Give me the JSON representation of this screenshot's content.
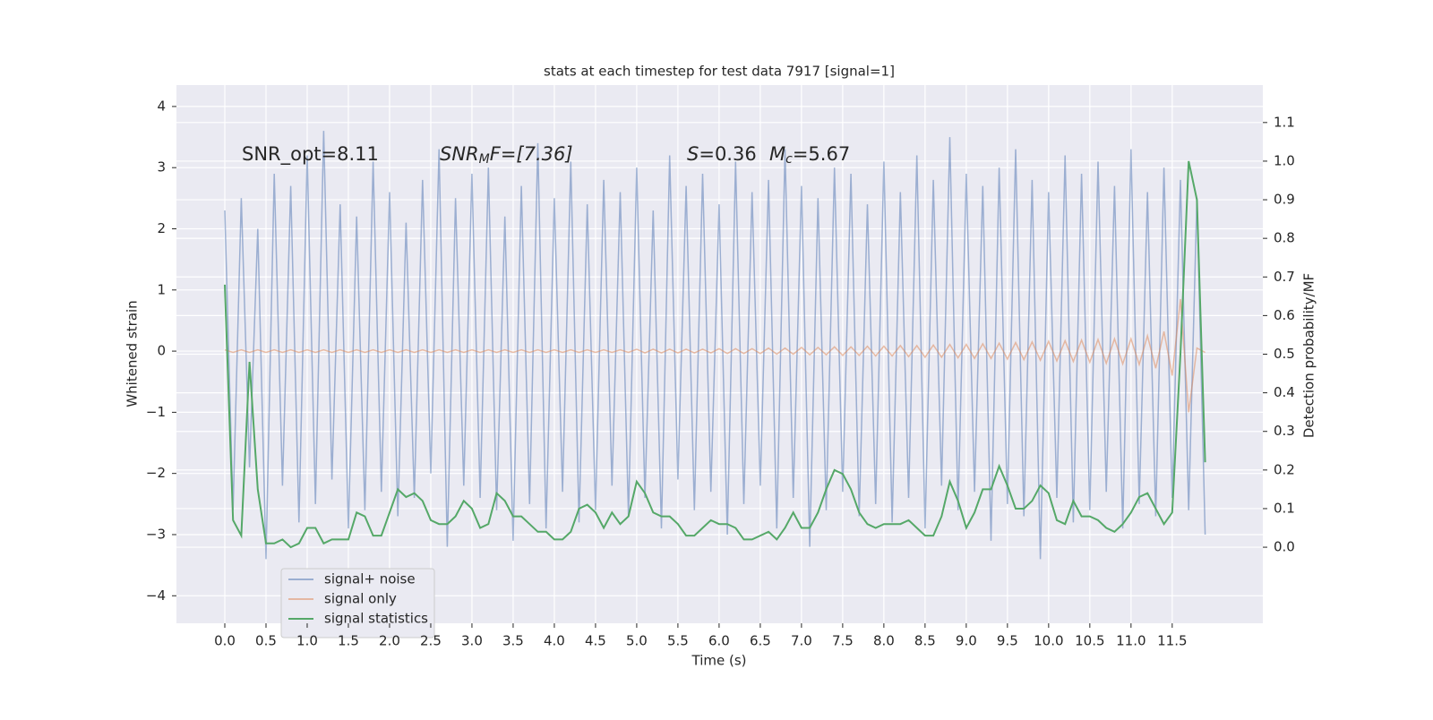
{
  "chart_data": {
    "type": "line",
    "title": "stats at each timestep for test data 7917 [signal=1]",
    "xlabel": "Time (s)",
    "ylabel": "Whitened strain",
    "y2label": "Detection probability/MF",
    "annotations": [
      [
        "SNR_opt=8.11"
      ],
      [
        "SNR",
        "M",
        "F=[7.36]"
      ],
      [
        "S",
        "=0.36"
      ],
      [
        "M",
        "c",
        "=5.67"
      ]
    ],
    "grid": true,
    "legend": "lower left",
    "xlim": [
      -0.587,
      12.6
    ],
    "ylim": [
      -4.45,
      4.35
    ],
    "y2lim": [
      -0.197,
      1.197
    ],
    "xticks": [
      {
        "value": 0,
        "label": "0.0"
      },
      0.5,
      {
        "value": 1,
        "label": "1.0"
      },
      1.5,
      {
        "value": 2,
        "label": "2.0"
      },
      2.5,
      {
        "value": 3,
        "label": "3.0"
      },
      3.5,
      {
        "value": 4,
        "label": "4.0"
      },
      4.5,
      {
        "value": 5,
        "label": "5.0"
      },
      5.5,
      {
        "value": 6,
        "label": "6.0"
      },
      6.5,
      {
        "value": 7,
        "label": "7.0"
      },
      7.5,
      {
        "value": 8,
        "label": "8.0"
      },
      8.5,
      {
        "value": 9,
        "label": "9.0"
      },
      9.5,
      {
        "value": 10,
        "label": "10.0"
      },
      10.5,
      {
        "value": 11,
        "label": "11.0"
      },
      11.5
    ],
    "yticks": [
      {
        "value": -4,
        "label": "−4"
      },
      {
        "value": -3,
        "label": "−3"
      },
      {
        "value": -2,
        "label": "−2"
      },
      {
        "value": -1,
        "label": "−1"
      },
      0,
      1,
      2,
      3,
      4
    ],
    "y2ticks": [
      {
        "value": 0,
        "label": "0.0"
      },
      0.1,
      0.2,
      0.3,
      0.4,
      0.5,
      0.6,
      0.7,
      0.8,
      0.9,
      {
        "value": 1,
        "label": "1.0"
      },
      1.1
    ],
    "x": [
      0.0,
      0.1,
      0.2,
      0.3,
      0.4,
      0.5,
      0.6,
      0.7,
      0.8,
      0.9,
      1.0,
      1.1,
      1.2,
      1.3,
      1.4,
      1.5,
      1.6,
      1.7,
      1.8,
      1.9,
      2.0,
      2.1,
      2.2,
      2.3,
      2.4,
      2.5,
      2.6,
      2.7,
      2.8,
      2.9,
      3.0,
      3.1,
      3.2,
      3.3,
      3.4,
      3.5,
      3.6,
      3.7,
      3.8,
      3.9,
      4.0,
      4.1,
      4.2,
      4.3,
      4.4,
      4.5,
      4.6,
      4.7,
      4.8,
      4.9,
      5.0,
      5.1,
      5.2,
      5.3,
      5.4,
      5.5,
      5.6,
      5.7,
      5.8,
      5.9,
      6.0,
      6.1,
      6.2,
      6.3,
      6.4,
      6.5,
      6.6,
      6.7,
      6.8,
      6.9,
      7.0,
      7.1,
      7.2,
      7.3,
      7.4,
      7.5,
      7.6,
      7.7,
      7.8,
      7.9,
      8.0,
      8.1,
      8.2,
      8.3,
      8.4,
      8.5,
      8.6,
      8.7,
      8.8,
      8.9,
      9.0,
      9.1,
      9.2,
      9.3,
      9.4,
      9.5,
      9.6,
      9.7,
      9.8,
      9.9,
      10.0,
      10.1,
      10.2,
      10.3,
      10.4,
      10.5,
      10.6,
      10.7,
      10.8,
      10.9,
      11.0,
      11.1,
      11.2,
      11.3,
      11.4,
      11.5,
      11.6,
      11.7,
      11.8,
      11.9
    ],
    "series": [
      {
        "name": "signal+ noise",
        "color": "#4c72b0",
        "opacity": 0.5,
        "axis": "y",
        "values": [
          2.3,
          -2.6,
          2.5,
          -1.9,
          2.0,
          -3.4,
          2.9,
          -2.2,
          2.7,
          -2.8,
          3.2,
          -2.5,
          3.6,
          -2.1,
          2.4,
          -2.9,
          2.2,
          -2.6,
          3.1,
          -2.3,
          2.6,
          -2.7,
          2.1,
          -2.4,
          2.8,
          -2.0,
          3.3,
          -3.2,
          2.5,
          -2.2,
          2.9,
          -2.4,
          3.0,
          -2.6,
          2.2,
          -3.1,
          2.7,
          -2.5,
          3.4,
          -2.9,
          2.5,
          -2.3,
          3.1,
          -2.8,
          2.4,
          -2.6,
          2.8,
          -2.2,
          2.6,
          -2.7,
          3.0,
          -2.4,
          2.3,
          -2.9,
          3.2,
          -2.1,
          2.7,
          -2.6,
          2.9,
          -2.3,
          2.4,
          -3.0,
          3.1,
          -2.5,
          2.6,
          -2.2,
          2.8,
          -2.9,
          3.3,
          -2.4,
          2.7,
          -3.2,
          2.5,
          -2.6,
          3.0,
          -2.3,
          2.9,
          -2.7,
          2.4,
          -2.5,
          3.1,
          -2.8,
          2.6,
          -2.4,
          3.2,
          -2.9,
          2.8,
          -2.2,
          3.5,
          -2.6,
          2.9,
          -2.3,
          2.7,
          -3.1,
          3.0,
          -2.5,
          3.3,
          -2.7,
          2.8,
          -3.4,
          2.6,
          -2.4,
          3.2,
          -2.8,
          2.9,
          -2.6,
          3.1,
          -2.3,
          2.7,
          -2.9,
          3.3,
          -2.5,
          2.6,
          -2.7,
          3.0,
          -2.4,
          2.8,
          -2.6,
          2.5,
          -3.0
        ]
      },
      {
        "name": "signal only",
        "color": "#dd8452",
        "opacity": 0.5,
        "axis": "y",
        "values": [
          0.02,
          -0.02,
          0.02,
          -0.02,
          0.02,
          -0.02,
          0.02,
          -0.02,
          0.02,
          -0.02,
          0.02,
          -0.02,
          0.02,
          -0.02,
          0.02,
          -0.02,
          0.02,
          -0.02,
          0.02,
          -0.02,
          0.02,
          -0.02,
          0.02,
          -0.02,
          0.02,
          -0.02,
          0.02,
          -0.02,
          0.02,
          -0.02,
          0.02,
          -0.02,
          0.02,
          -0.02,
          0.02,
          -0.02,
          0.02,
          -0.02,
          0.02,
          -0.02,
          0.02,
          -0.02,
          0.02,
          -0.02,
          0.02,
          -0.02,
          0.02,
          -0.02,
          0.02,
          -0.02,
          0.03,
          -0.03,
          0.03,
          -0.03,
          0.03,
          -0.03,
          0.03,
          -0.03,
          0.03,
          -0.03,
          0.04,
          -0.04,
          0.04,
          -0.04,
          0.04,
          -0.04,
          0.05,
          -0.05,
          0.05,
          -0.05,
          0.06,
          -0.06,
          0.06,
          -0.06,
          0.07,
          -0.07,
          0.07,
          -0.07,
          0.08,
          -0.08,
          0.08,
          -0.08,
          0.09,
          -0.09,
          0.09,
          -0.1,
          0.1,
          -0.1,
          0.11,
          -0.11,
          0.11,
          -0.12,
          0.12,
          -0.12,
          0.13,
          -0.13,
          0.14,
          -0.14,
          0.15,
          -0.15,
          0.16,
          -0.16,
          0.17,
          -0.17,
          0.18,
          -0.18,
          0.19,
          -0.2,
          0.2,
          -0.21,
          0.2,
          -0.22,
          0.25,
          -0.28,
          0.32,
          -0.4,
          0.85,
          -1.0,
          0.05,
          -0.02
        ]
      },
      {
        "name": "signal statistics",
        "color": "#55a868",
        "opacity": 1,
        "axis": "y2",
        "values": [
          0.68,
          0.07,
          0.03,
          0.48,
          0.15,
          0.01,
          0.01,
          0.02,
          0.0,
          0.01,
          0.05,
          0.05,
          0.01,
          0.02,
          0.02,
          0.02,
          0.09,
          0.08,
          0.03,
          0.03,
          0.09,
          0.15,
          0.13,
          0.14,
          0.12,
          0.07,
          0.06,
          0.06,
          0.08,
          0.12,
          0.1,
          0.05,
          0.06,
          0.14,
          0.12,
          0.08,
          0.08,
          0.06,
          0.04,
          0.04,
          0.02,
          0.02,
          0.04,
          0.1,
          0.11,
          0.09,
          0.05,
          0.09,
          0.06,
          0.08,
          0.17,
          0.14,
          0.09,
          0.08,
          0.08,
          0.06,
          0.03,
          0.03,
          0.05,
          0.07,
          0.06,
          0.06,
          0.05,
          0.02,
          0.02,
          0.03,
          0.04,
          0.02,
          0.05,
          0.09,
          0.05,
          0.05,
          0.09,
          0.15,
          0.2,
          0.19,
          0.15,
          0.09,
          0.06,
          0.05,
          0.06,
          0.06,
          0.06,
          0.07,
          0.05,
          0.03,
          0.03,
          0.08,
          0.17,
          0.12,
          0.05,
          0.09,
          0.15,
          0.15,
          0.21,
          0.16,
          0.1,
          0.1,
          0.12,
          0.16,
          0.14,
          0.07,
          0.06,
          0.12,
          0.08,
          0.08,
          0.07,
          0.05,
          0.04,
          0.06,
          0.09,
          0.13,
          0.14,
          0.1,
          0.06,
          0.09,
          0.5,
          1.0,
          0.9,
          0.22
        ]
      }
    ]
  }
}
